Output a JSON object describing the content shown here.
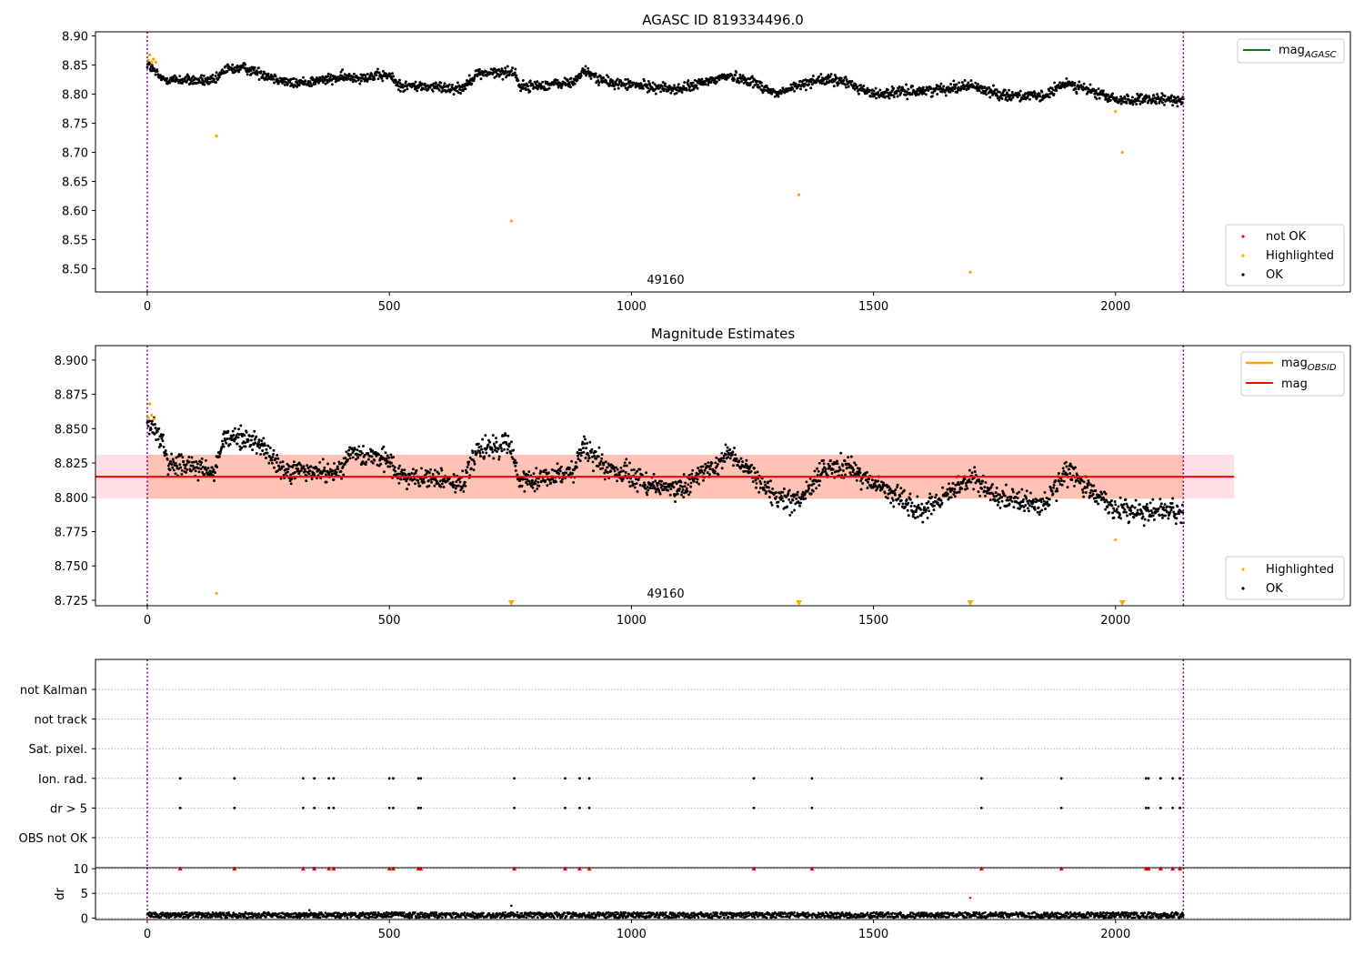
{
  "colors": {
    "ok": "#000000",
    "highlighted": "#ffa500",
    "not_ok": "#ff0000",
    "agasc": "#008000",
    "mag": "#ff0000",
    "obsid": "#ffa500",
    "mag_band": "#ffc0cb",
    "obsid_band": "#ffa07a",
    "vline": "#800080",
    "grid": "#b0b0b0"
  },
  "chart_data": [
    {
      "type": "scatter",
      "title": "AGASC ID 819334496.0",
      "xlim": [
        -107,
        2485
      ],
      "ylim": [
        8.46,
        8.907
      ],
      "xticks": [
        0,
        500,
        1000,
        1500,
        2000
      ],
      "yticks": [
        8.5,
        8.55,
        8.6,
        8.65,
        8.7,
        8.75,
        8.8,
        8.85,
        8.9
      ],
      "ytick_decimals": 2,
      "vlines": [
        0,
        2140
      ],
      "annotation": {
        "text": "49160",
        "x": 1070
      },
      "legend_top": [
        {
          "label": "mag",
          "sub": "AGASC",
          "color": "#008000"
        }
      ],
      "legend_bottom": [
        {
          "label": "not OK",
          "color": "#ff0000"
        },
        {
          "label": "Highlighted",
          "color": "#ffa500"
        },
        {
          "label": "OK",
          "color": "#000000"
        }
      ],
      "series": [
        {
          "name": "OK",
          "n": 2140,
          "x_range": [
            0,
            2140
          ],
          "trend": [
            [
              0,
              8.852
            ],
            [
              30,
              8.826
            ],
            [
              140,
              8.822
            ],
            [
              160,
              8.842
            ],
            [
              200,
              8.845
            ],
            [
              300,
              8.818
            ],
            [
              400,
              8.828
            ],
            [
              500,
              8.832
            ],
            [
              520,
              8.815
            ],
            [
              650,
              8.81
            ],
            [
              680,
              8.835
            ],
            [
              760,
              8.838
            ],
            [
              770,
              8.812
            ],
            [
              880,
              8.82
            ],
            [
              900,
              8.84
            ],
            [
              950,
              8.82
            ],
            [
              1100,
              8.808
            ],
            [
              1200,
              8.832
            ],
            [
              1250,
              8.822
            ],
            [
              1300,
              8.8
            ],
            [
              1380,
              8.825
            ],
            [
              1440,
              8.822
            ],
            [
              1500,
              8.8
            ],
            [
              1620,
              8.807
            ],
            [
              1700,
              8.815
            ],
            [
              1760,
              8.8
            ],
            [
              1850,
              8.795
            ],
            [
              1900,
              8.82
            ],
            [
              2000,
              8.79
            ],
            [
              2140,
              8.79
            ]
          ],
          "noise": 0.009
        },
        {
          "name": "Highlighted",
          "points": [
            [
              2,
              8.858
            ],
            [
              5,
              8.867
            ],
            [
              9,
              8.855
            ],
            [
              13,
              8.86
            ],
            [
              18,
              8.855
            ],
            [
              143,
              8.728
            ],
            [
              752,
              8.582
            ],
            [
              1346,
              8.627
            ],
            [
              1700,
              8.494
            ],
            [
              2000,
              8.77
            ],
            [
              2014,
              8.7
            ]
          ]
        }
      ]
    },
    {
      "type": "scatter",
      "title": "Magnitude Estimates",
      "xlim": [
        -107,
        2485
      ],
      "ylim": [
        8.721,
        8.9105
      ],
      "xticks": [
        0,
        500,
        1000,
        1500,
        2000
      ],
      "yticks": [
        8.725,
        8.75,
        8.775,
        8.8,
        8.825,
        8.85,
        8.875,
        8.9
      ],
      "ytick_decimals": 3,
      "vlines": [
        0,
        2140
      ],
      "annotation": {
        "text": "49160",
        "x": 1070
      },
      "mag": {
        "value": 8.815,
        "band": [
          8.799,
          8.831
        ],
        "x_range": [
          -107,
          2245
        ]
      },
      "mag_obsid": {
        "value": 8.815,
        "band": [
          8.799,
          8.831
        ],
        "x_range": [
          0,
          2140
        ]
      },
      "legend_top": [
        {
          "label": "mag",
          "sub": "OBSID",
          "color": "#ffa500"
        },
        {
          "label": "mag",
          "color": "#ff0000"
        }
      ],
      "legend_bottom": [
        {
          "label": "Highlighted",
          "color": "#ffa500"
        },
        {
          "label": "OK",
          "color": "#000000"
        }
      ],
      "series": [
        {
          "name": "OK",
          "n": 2140,
          "x_range": [
            0,
            2140
          ],
          "trend": [
            [
              0,
              8.854
            ],
            [
              30,
              8.843
            ],
            [
              45,
              8.826
            ],
            [
              140,
              8.818
            ],
            [
              160,
              8.844
            ],
            [
              230,
              8.84
            ],
            [
              280,
              8.82
            ],
            [
              400,
              8.818
            ],
            [
              420,
              8.832
            ],
            [
              500,
              8.828
            ],
            [
              520,
              8.815
            ],
            [
              630,
              8.812
            ],
            [
              650,
              8.808
            ],
            [
              680,
              8.833
            ],
            [
              750,
              8.838
            ],
            [
              770,
              8.812
            ],
            [
              880,
              8.818
            ],
            [
              900,
              8.836
            ],
            [
              950,
              8.822
            ],
            [
              1050,
              8.808
            ],
            [
              1100,
              8.805
            ],
            [
              1200,
              8.832
            ],
            [
              1250,
              8.818
            ],
            [
              1300,
              8.798
            ],
            [
              1350,
              8.797
            ],
            [
              1400,
              8.822
            ],
            [
              1450,
              8.822
            ],
            [
              1500,
              8.81
            ],
            [
              1600,
              8.79
            ],
            [
              1700,
              8.815
            ],
            [
              1760,
              8.8
            ],
            [
              1850,
              8.795
            ],
            [
              1900,
              8.82
            ],
            [
              2000,
              8.79
            ],
            [
              2140,
              8.79
            ]
          ],
          "noise": 0.008
        },
        {
          "name": "Highlighted",
          "points": [
            [
              2,
              8.858
            ],
            [
              5,
              8.868
            ],
            [
              9,
              8.86
            ],
            [
              14,
              8.857
            ],
            [
              143,
              8.73
            ],
            [
              2000,
              8.769
            ]
          ]
        },
        {
          "name": "Below range",
          "marker": "triangle-down",
          "points": [
            [
              752,
              8.723
            ],
            [
              1346,
              8.723
            ],
            [
              1700,
              8.723
            ],
            [
              2014,
              8.723
            ]
          ]
        }
      ]
    },
    {
      "type": "scatter",
      "categories": [
        "OBS not OK",
        "dr > 5",
        "Ion. rad.",
        "Sat. pixel.",
        "not track",
        "not Kalman"
      ],
      "xlim": [
        -107,
        2485
      ],
      "vlines": [
        0,
        2140
      ],
      "flag_x": [
        68,
        180,
        322,
        345,
        375,
        385,
        500,
        508,
        560,
        565,
        758,
        863,
        893,
        913,
        1253,
        1373,
        1723,
        1888,
        2063,
        2068,
        2093,
        2118,
        2133
      ],
      "flags": [
        {
          "category": "dr > 5",
          "uses_flag_x": true
        },
        {
          "category": "Ion. rad.",
          "uses_flag_x": true
        }
      ]
    },
    {
      "type": "scatter",
      "ylabel": "dr",
      "xlim": [
        -107,
        2485
      ],
      "ylim": [
        -0.3,
        10.2
      ],
      "xticks": [
        0,
        500,
        1000,
        1500,
        2000
      ],
      "yticks": [
        0,
        5,
        10
      ],
      "vlines": [
        0,
        2140
      ],
      "dr_ok": {
        "n": 2140,
        "mean": 0.6,
        "amp": 0.55
      },
      "dr_outliers": [
        [
          335,
          1.6
        ],
        [
          752,
          2.5
        ],
        [
          1700,
          4.1
        ]
      ],
      "dr_clipped": {
        "value": 10,
        "uses_flag_x": true
      }
    }
  ]
}
